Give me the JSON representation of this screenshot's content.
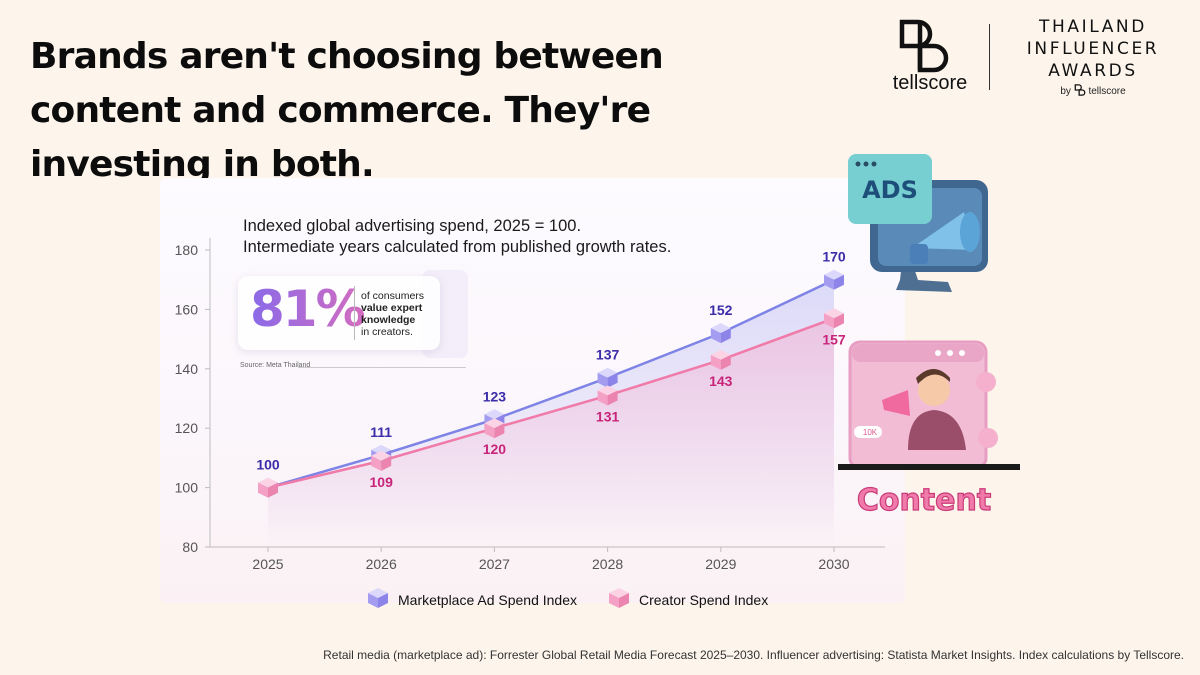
{
  "headline": {
    "line1": "Brands aren't choosing between",
    "line2": "content and commerce. They're",
    "line3": "investing in both."
  },
  "brand": {
    "wordmark": "tellscore",
    "award_line1": "THAILAND",
    "award_line2": "INFLUENCER",
    "award_line3": "AWARDS",
    "award_by": "by",
    "award_by_brand": "tellscore"
  },
  "stat_card": {
    "value": "81%",
    "line1": "of consumers",
    "line2": "value expert",
    "line3": "knowledge",
    "line4": "in creators.",
    "source": "Source: Meta Thailand"
  },
  "illustrations": {
    "ads_label": "ADS",
    "content_label": "Content",
    "counter_label": "10K"
  },
  "chart_data": {
    "type": "line",
    "annotation_line1": "Indexed global advertising spend, 2025 = 100.",
    "annotation_line2": "Intermediate years calculated from published growth rates.",
    "x": [
      "2025",
      "2026",
      "2027",
      "2028",
      "2029",
      "2030"
    ],
    "ylim": [
      80,
      180
    ],
    "yticks": [
      80,
      100,
      120,
      140,
      160,
      180
    ],
    "grid": false,
    "legend_position": "bottom",
    "series": [
      {
        "name": "Marketplace Ad Spend Index",
        "values": [
          100,
          111,
          123,
          137,
          152,
          170
        ],
        "color": "#7e83e6",
        "label_color": "#3b2ca8"
      },
      {
        "name": "Creator Spend Index",
        "values": [
          100,
          109,
          120,
          131,
          143,
          157
        ],
        "color": "#f07aa8",
        "label_color": "#c8247a"
      }
    ]
  },
  "footer": {
    "source": "Retail media (marketplace ad): Forrester Global Retail Media Forecast 2025–2030. Influencer advertising: Statista Market Insights. Index calculations by Tellscore."
  }
}
